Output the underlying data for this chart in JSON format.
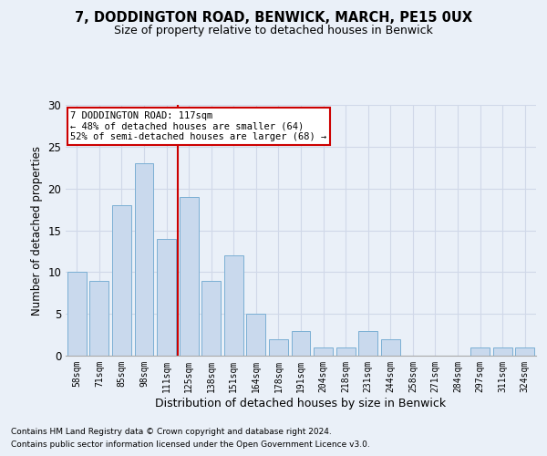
{
  "title": "7, DODDINGTON ROAD, BENWICK, MARCH, PE15 0UX",
  "subtitle": "Size of property relative to detached houses in Benwick",
  "xlabel": "Distribution of detached houses by size in Benwick",
  "ylabel": "Number of detached properties",
  "bar_labels": [
    "58sqm",
    "71sqm",
    "85sqm",
    "98sqm",
    "111sqm",
    "125sqm",
    "138sqm",
    "151sqm",
    "164sqm",
    "178sqm",
    "191sqm",
    "204sqm",
    "218sqm",
    "231sqm",
    "244sqm",
    "258sqm",
    "271sqm",
    "284sqm",
    "297sqm",
    "311sqm",
    "324sqm"
  ],
  "bar_values": [
    10,
    9,
    18,
    23,
    14,
    19,
    9,
    12,
    5,
    2,
    3,
    1,
    1,
    3,
    2,
    0,
    0,
    0,
    1,
    1,
    1
  ],
  "bar_color": "#c9d9ed",
  "bar_edge_color": "#7bafd4",
  "bar_edge_width": 0.7,
  "vline_x_index": 4.5,
  "vline_color": "#cc0000",
  "annotation_text": "7 DODDINGTON ROAD: 117sqm\n← 48% of detached houses are smaller (64)\n52% of semi-detached houses are larger (68) →",
  "annotation_box_color": "#ffffff",
  "annotation_box_edge": "#cc0000",
  "ylim": [
    0,
    30
  ],
  "yticks": [
    0,
    5,
    10,
    15,
    20,
    25,
    30
  ],
  "grid_color": "#d0d8e8",
  "background_color": "#eaf0f8",
  "footnote1": "Contains HM Land Registry data © Crown copyright and database right 2024.",
  "footnote2": "Contains public sector information licensed under the Open Government Licence v3.0."
}
